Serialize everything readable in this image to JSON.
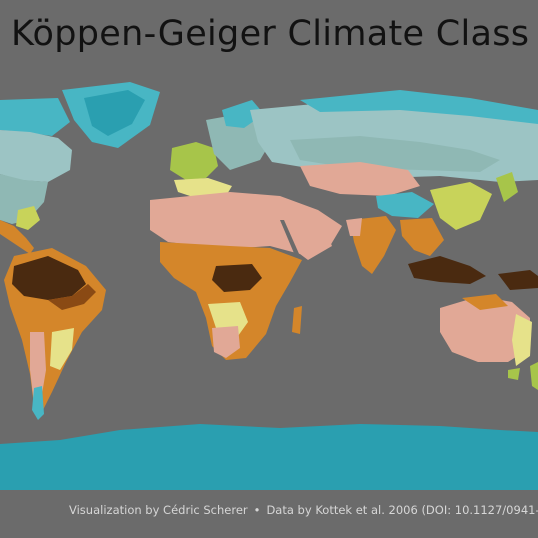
{
  "title": "Köppen-Geiger Climate Class",
  "caption": {
    "credit": "Visualization by Cédric Scherer",
    "separator": "•",
    "source": "Data by Kottek et al. 2006 (DOI: 10.1127/0941-"
  },
  "colors": {
    "background": "#6b6b6b",
    "tropical_rainforest": "#4a2a10",
    "tropical_monsoon": "#8a4a14",
    "tropical_savanna": "#d4862a",
    "hot_desert": "#e1a896",
    "steppe": "#e0c070",
    "mediterranean": "#e6e28a",
    "humid_subtropical": "#c8d35a",
    "oceanic": "#a7c54a",
    "continental": "#8fb8b4",
    "subarctic": "#9cc4c4",
    "tundra": "#48b6c4",
    "ice_cap": "#2a9fb0"
  }
}
